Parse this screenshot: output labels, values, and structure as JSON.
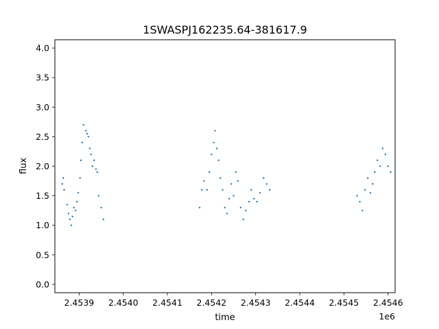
{
  "chart_data": {
    "type": "scatter",
    "title": "1SWASPJ162235.64-381617.9",
    "xlabel": "time",
    "ylabel": "flux",
    "x_offset_label": "1e6",
    "xlim": [
      2453845.0,
      2454616.0
    ],
    "ylim": [
      -0.14,
      4.14
    ],
    "x_ticks": [
      2453900,
      2454000,
      2454100,
      2454200,
      2454300,
      2454400,
      2454500,
      2454600
    ],
    "x_tick_labels": [
      "2.4539",
      "2.4540",
      "2.4541",
      "2.4542",
      "2.4543",
      "2.4544",
      "2.4545",
      "2.4546"
    ],
    "y_ticks": [
      0.0,
      0.5,
      1.0,
      1.5,
      2.0,
      2.5,
      3.0,
      3.5,
      4.0
    ],
    "y_tick_labels": [
      "0.0",
      "0.5",
      "1.0",
      "1.5",
      "2.0",
      "2.5",
      "3.0",
      "3.5",
      "4.0"
    ],
    "grid": false,
    "legend": "none",
    "marker_color": "#1f77b4",
    "series": [
      {
        "x": [
          2453862,
          2453864,
          2453866,
          2453873,
          2453876,
          2453879,
          2453882,
          2453885,
          2453888,
          2453892,
          2453895,
          2453898,
          2453902,
          2453904,
          2453907,
          2453910,
          2453915,
          2453918,
          2453921,
          2453924,
          2453927,
          2453930,
          2453934,
          2453938,
          2453941,
          2453944,
          2453950,
          2453955,
          2454173,
          2454178,
          2454183,
          2454190,
          2454195,
          2454200,
          2454205,
          2454208,
          2454212,
          2454216,
          2454220,
          2454225,
          2454230,
          2454235,
          2454240,
          2454245,
          2454250,
          2454255,
          2454260,
          2454266,
          2454272,
          2454278,
          2454285,
          2454290,
          2454296,
          2454303,
          2454310,
          2454318,
          2454325,
          2454332,
          2454530,
          2454536,
          2454542,
          2454548,
          2454554,
          2454560,
          2454565,
          2454570,
          2454576,
          2454582,
          2454588,
          2454594,
          2454600,
          2454606
        ],
        "y": [
          1.7,
          1.8,
          1.6,
          1.35,
          1.2,
          1.1,
          1.0,
          1.15,
          1.3,
          1.25,
          1.4,
          1.55,
          1.8,
          2.1,
          2.4,
          2.7,
          2.6,
          2.55,
          2.5,
          2.3,
          2.2,
          2.0,
          2.1,
          1.95,
          1.9,
          1.5,
          1.3,
          1.1,
          1.3,
          1.6,
          1.75,
          1.6,
          1.9,
          2.2,
          2.4,
          2.6,
          2.3,
          2.1,
          1.8,
          1.6,
          1.3,
          1.2,
          1.45,
          1.7,
          1.5,
          1.9,
          1.75,
          1.3,
          1.1,
          1.25,
          1.4,
          1.6,
          1.45,
          1.4,
          1.55,
          1.8,
          1.7,
          1.6,
          1.5,
          1.4,
          1.25,
          1.6,
          1.8,
          1.55,
          1.7,
          1.9,
          2.1,
          2.0,
          2.3,
          2.2,
          2.0,
          1.9
        ]
      }
    ]
  }
}
